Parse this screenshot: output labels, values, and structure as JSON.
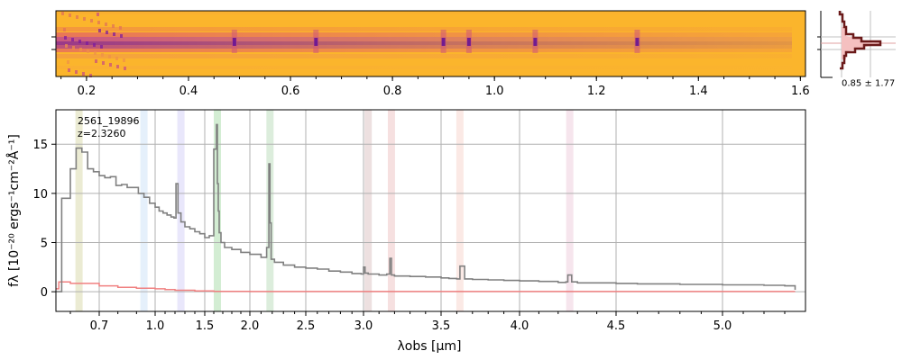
{
  "chart_data": [
    {
      "type": "heatmap",
      "name": "2D spectrum",
      "colormap": "plasma",
      "xlim": [
        0.14,
        1.61
      ],
      "xticks_major": [
        0.2,
        0.4,
        0.6,
        0.8,
        1.0,
        1.2,
        1.4,
        1.6
      ],
      "xtick_labels": [
        "0.2",
        "0.4",
        "0.6",
        "0.8",
        "1.0",
        "1.2",
        "1.4",
        "1.6"
      ],
      "emission_columns": [
        0.49,
        0.65,
        0.9,
        0.95,
        1.08,
        1.28
      ],
      "trace_rows": "center"
    },
    {
      "type": "line",
      "name": "profile",
      "annotation": "0.85 ± 1.77",
      "peak_marker_style": "horizontal gridlines at trace center and edges"
    },
    {
      "type": "line",
      "name": "1D spectrum",
      "annotation_id": "2561_19896",
      "annotation_z": "z=2.3260",
      "xlabel": "λobs [μm]",
      "ylabel": "fλ [10⁻²⁰ ergs⁻¹cm⁻²Å⁻¹]",
      "ylim": [
        -2,
        18.5
      ],
      "yticks": [
        0,
        5,
        10,
        15
      ],
      "xticks_major": [
        0.7,
        1.0,
        1.5,
        2.0,
        2.5,
        3.0,
        3.5,
        4.0,
        4.5,
        5.0
      ],
      "xtick_labels": [
        "0.7",
        "1.0",
        "1.5",
        "2.0",
        "2.5",
        "3.0",
        "3.5",
        "4.0",
        "4.5",
        "5.0"
      ],
      "grid": true,
      "series": [
        {
          "color": "#808080",
          "x": [
            0.55,
            0.57,
            0.6,
            0.62,
            0.64,
            0.66,
            0.68,
            0.7,
            0.73,
            0.76,
            0.79,
            0.82,
            0.85,
            0.88,
            0.91,
            0.94,
            0.97,
            1.0,
            1.04,
            1.08,
            1.12,
            1.16,
            1.19,
            1.21,
            1.23,
            1.26,
            1.3,
            1.35,
            1.4,
            1.45,
            1.5,
            1.55,
            1.6,
            1.63,
            1.64,
            1.65,
            1.66,
            1.68,
            1.72,
            1.8,
            1.9,
            2.0,
            2.1,
            2.15,
            2.17,
            2.18,
            2.19,
            2.22,
            2.3,
            2.4,
            2.5,
            2.6,
            2.7,
            2.8,
            2.9,
            2.98,
            3.0,
            3.01,
            3.03,
            3.1,
            3.15,
            3.17,
            3.18,
            3.2,
            3.3,
            3.4,
            3.5,
            3.55,
            3.6,
            3.62,
            3.65,
            3.7,
            3.8,
            3.9,
            4.0,
            4.1,
            4.2,
            4.24,
            4.25,
            4.27,
            4.3,
            4.4,
            4.5,
            4.6,
            4.7,
            4.8,
            4.9,
            5.0,
            5.1,
            5.2,
            5.3,
            5.35
          ],
          "y": [
            0,
            9.5,
            12.5,
            14.6,
            14.2,
            12.5,
            12.2,
            11.8,
            11.6,
            11.7,
            10.8,
            10.9,
            10.6,
            10.6,
            10.0,
            9.6,
            9.0,
            8.6,
            8.2,
            8.0,
            7.8,
            7.6,
            7.5,
            11.0,
            8.0,
            7.1,
            6.6,
            6.4,
            6.1,
            5.9,
            5.5,
            5.7,
            14.5,
            17.0,
            11.0,
            8.2,
            6.0,
            5.0,
            4.5,
            4.3,
            4.0,
            3.8,
            3.5,
            4.5,
            13.0,
            7.0,
            3.3,
            3.0,
            2.7,
            2.5,
            2.4,
            2.3,
            2.1,
            2.0,
            1.85,
            1.8,
            2.5,
            1.9,
            1.8,
            1.7,
            1.8,
            3.4,
            1.7,
            1.6,
            1.55,
            1.5,
            1.4,
            1.35,
            1.3,
            2.6,
            1.3,
            1.25,
            1.2,
            1.15,
            1.1,
            1.05,
            0.95,
            1.0,
            1.7,
            1.0,
            0.9,
            0.9,
            0.85,
            0.8,
            0.8,
            0.75,
            0.75,
            0.7,
            0.7,
            0.65,
            0.6,
            0.2
          ]
        },
        {
          "color": "#f08080",
          "x": [
            0.55,
            0.56,
            0.6,
            0.7,
            0.8,
            0.9,
            1.0,
            1.1,
            1.2,
            1.4,
            1.6,
            2.0,
            3.0,
            4.0,
            5.0,
            5.35
          ],
          "y": [
            0.3,
            1.0,
            0.85,
            0.6,
            0.45,
            0.35,
            0.3,
            0.22,
            0.15,
            0.08,
            0.04,
            0.02,
            0.02,
            0.02,
            0.02,
            0.02
          ]
        }
      ],
      "line_bands": [
        {
          "x": 0.63,
          "color": "#b8b860"
        },
        {
          "x": 0.94,
          "color": "#a0c8f0"
        },
        {
          "x": 1.26,
          "color": "#b0a8f0"
        },
        {
          "x": 1.64,
          "color": "#60c060"
        },
        {
          "x": 2.18,
          "color": "#80c080"
        },
        {
          "x": 3.03,
          "color": "#c09090"
        },
        {
          "x": 3.18,
          "color": "#e09090"
        },
        {
          "x": 3.62,
          "color": "#f0b0a0"
        },
        {
          "x": 4.26,
          "color": "#e0a0c0"
        }
      ]
    }
  ]
}
